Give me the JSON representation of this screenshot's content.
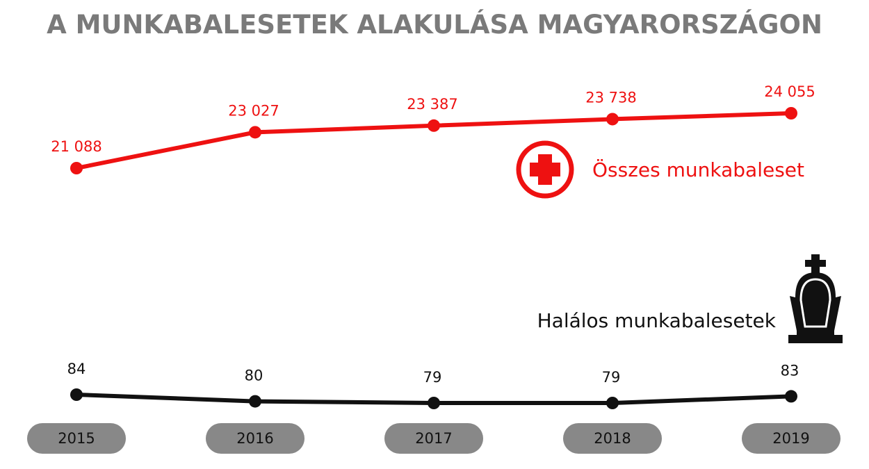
{
  "title": "A MUNKABALESETEK ALAKULÁSA MAGYARORSZÁGON",
  "colors": {
    "accent": "#ee1111",
    "dark": "#111111",
    "title": "#7a7a7a",
    "pill": "#888888"
  },
  "icons": {
    "total": "medical-cross-icon",
    "fatal": "tombstone-icon"
  },
  "chart_data": {
    "type": "line",
    "categories": [
      "2015",
      "2016",
      "2017",
      "2018",
      "2019"
    ],
    "series": [
      {
        "name": "Összes munkabaleset",
        "values": [
          21088,
          23027,
          23387,
          23738,
          24055
        ],
        "labels": [
          "21 088",
          "23 027",
          "23 387",
          "23 738",
          "24 055"
        ],
        "color": "#ee1111"
      },
      {
        "name": "Halálos munkabalesetek",
        "values": [
          84,
          80,
          79,
          79,
          83
        ],
        "labels": [
          "84",
          "80",
          "79",
          "79",
          "83"
        ],
        "color": "#111111"
      }
    ]
  }
}
